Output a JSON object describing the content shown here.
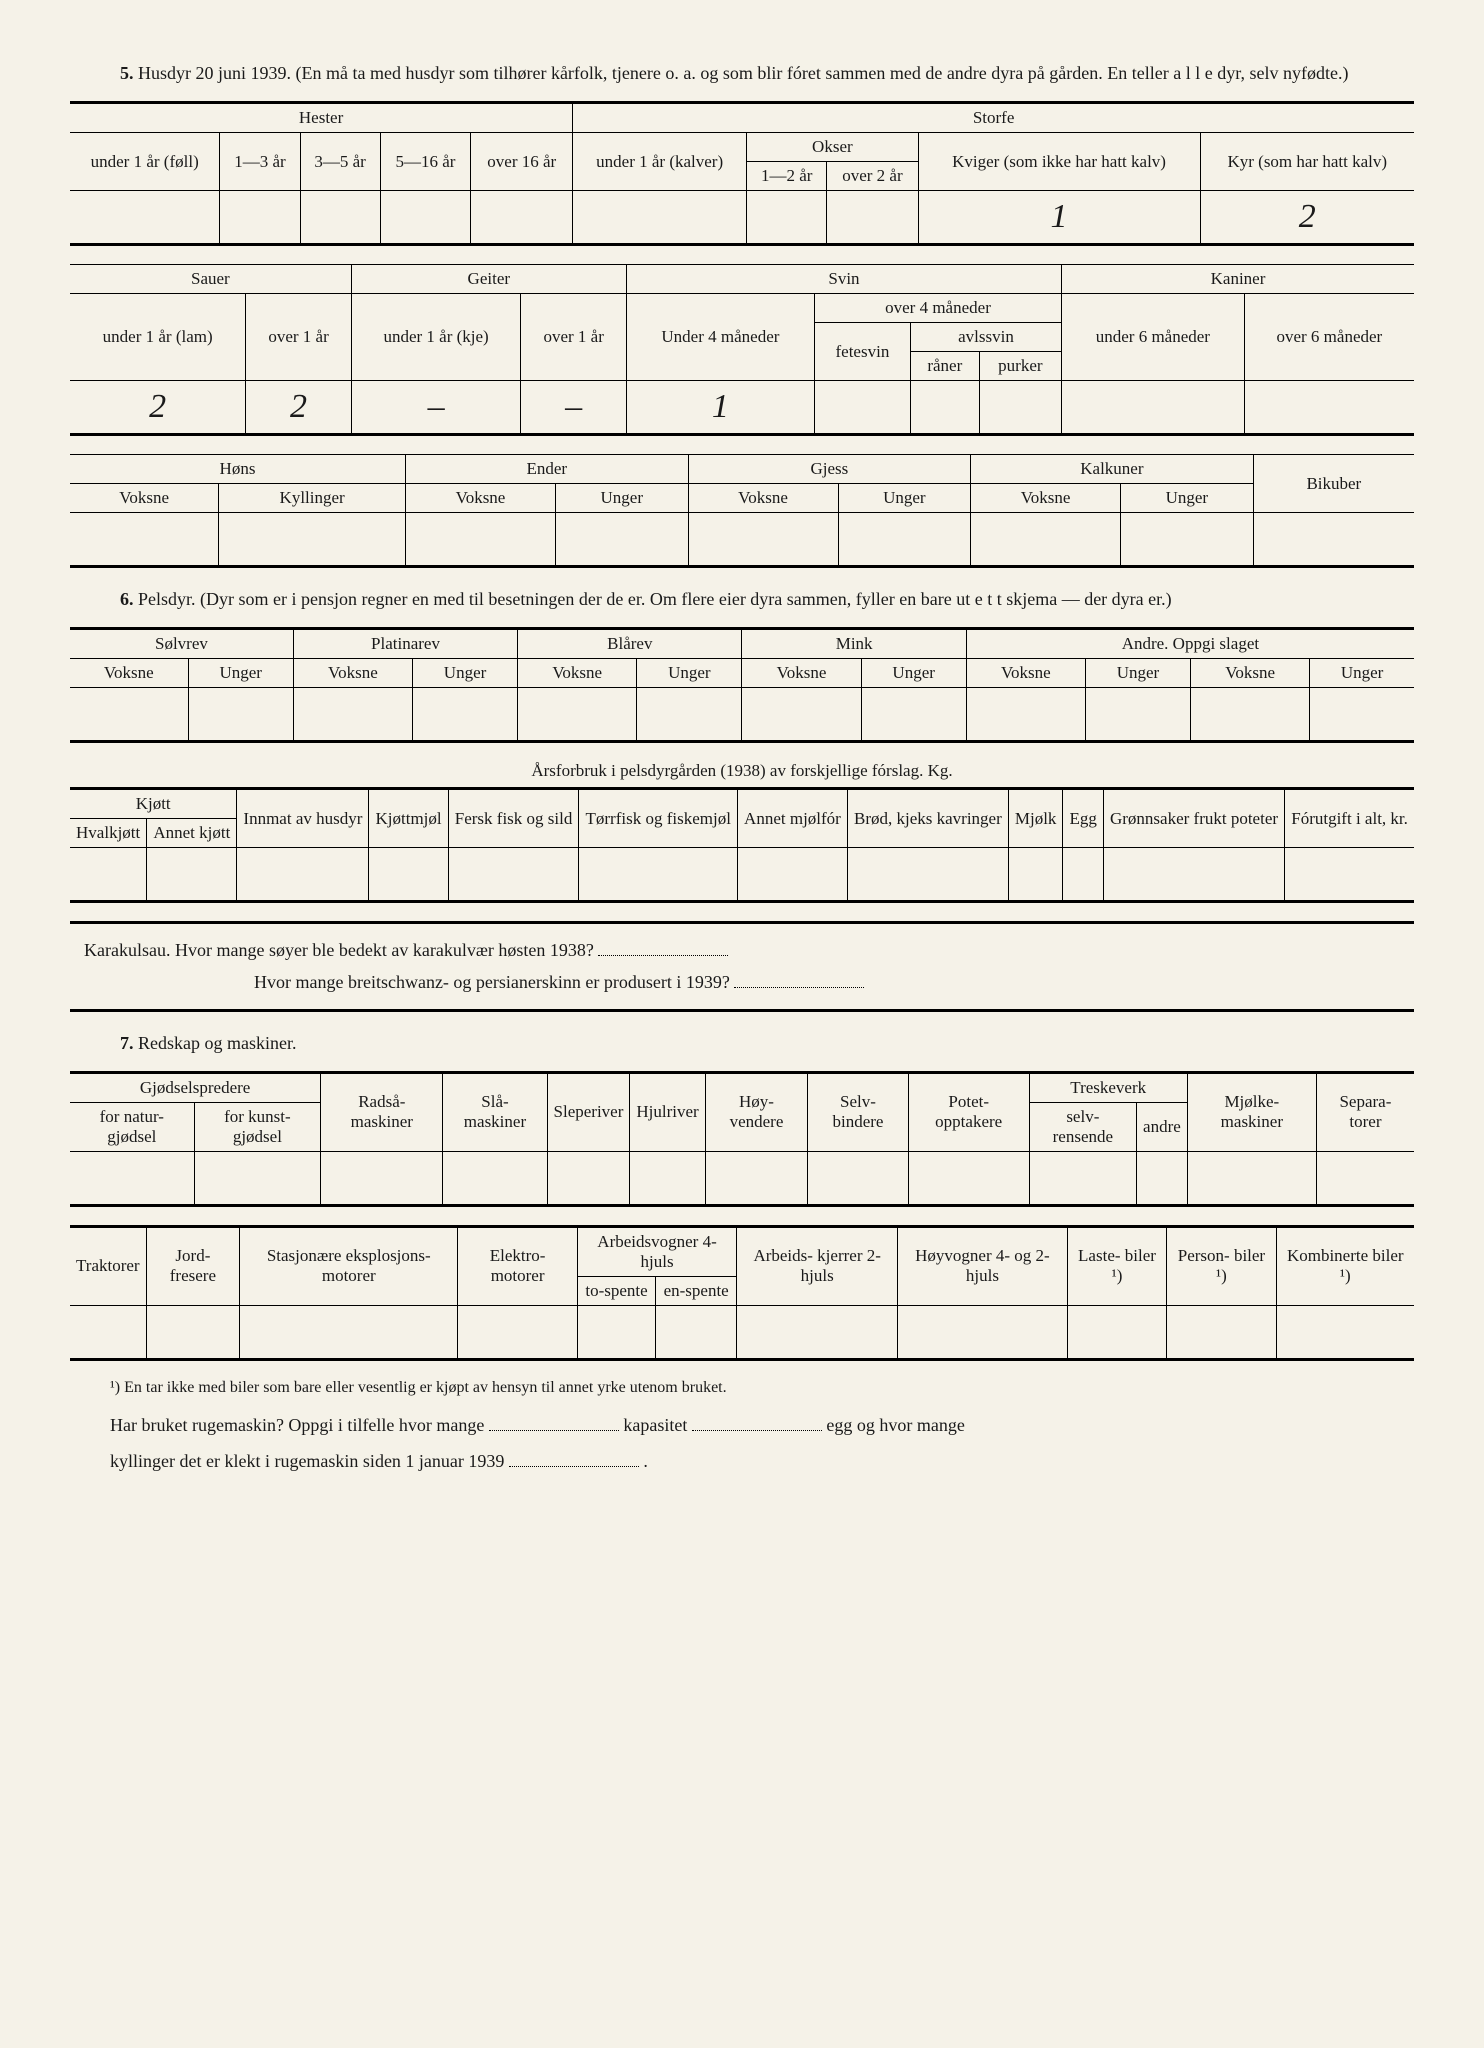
{
  "section5": {
    "num": "5.",
    "text": "Husdyr 20 juni 1939. (En må ta med husdyr som tilhører kårfolk, tjenere o. a. og som blir fóret sammen med de andre dyra på gården. En teller a l l e dyr, selv nyfødte.)"
  },
  "t1": {
    "hester": "Hester",
    "storfe": "Storfe",
    "under1foll": "under 1 år (føll)",
    "a1_3": "1—3 år",
    "a3_5": "3—5 år",
    "a5_16": "5—16 år",
    "over16": "over 16 år",
    "under1kalv": "under 1 år (kalver)",
    "okser": "Okser",
    "a1_2": "1—2 år",
    "over2": "over 2 år",
    "kviger": "Kviger (som ikke har hatt kalv)",
    "kyr": "Kyr (som har hatt kalv)",
    "data": {
      "kviger": "1",
      "kyr": "2"
    }
  },
  "t2": {
    "sauer": "Sauer",
    "geiter": "Geiter",
    "svin": "Svin",
    "kaniner": "Kaniner",
    "under1lam": "under 1 år (lam)",
    "over1": "over 1 år",
    "under1kje": "under 1 år (kje)",
    "over1g": "over 1 år",
    "under4m": "Under 4 måneder",
    "over4m": "over 4 måneder",
    "fetesvin": "fetesvin",
    "avlssvin": "avlssvin",
    "raner": "råner",
    "purker": "purker",
    "under6m": "under 6 måneder",
    "over6m": "over 6 måneder",
    "data": {
      "lam": "2",
      "sau_over1": "2",
      "kje": "–",
      "geit_over1": "–",
      "svin_u4": "1"
    }
  },
  "t3": {
    "hons": "Høns",
    "ender": "Ender",
    "gjess": "Gjess",
    "kalkuner": "Kalkuner",
    "bikuber": "Bikuber",
    "voksne": "Voksne",
    "kyllinger": "Kyllinger",
    "unger": "Unger"
  },
  "section6": {
    "num": "6.",
    "text": "Pelsdyr. (Dyr som er i pensjon regner en med til besetningen der de er. Om flere eier dyra sammen, fyller en bare ut e t t skjema — der dyra er.)"
  },
  "t4": {
    "solvrev": "Sølvrev",
    "platinarev": "Platinarev",
    "blarev": "Blårev",
    "mink": "Mink",
    "andre": "Andre. Oppgi slaget",
    "voksne": "Voksne",
    "unger": "Unger"
  },
  "feedcaption": "Årsforbruk i pelsdyrgården (1938) av forskjellige fórslag. Kg.",
  "t5": {
    "kjott": "Kjøtt",
    "hvalkjott": "Hvalkjøtt",
    "annetkjott": "Annet kjøtt",
    "innmat": "Innmat av husdyr",
    "kjottmjol": "Kjøttmjøl",
    "ferskfisk": "Fersk fisk og sild",
    "torrfisk": "Tørrfisk og fiskemjøl",
    "annetmjol": "Annet mjølfór",
    "brod": "Brød, kjeks kavringer",
    "mjolk": "Mjølk",
    "egg": "Egg",
    "gronnsaker": "Grønnsaker frukt poteter",
    "forutgift": "Fórutgift i alt, kr."
  },
  "karakul": {
    "q1pre": "Karakulsau.   Hvor mange søyer ble bedekt av karakulvær høsten 1938?",
    "q2": "Hvor mange breitschwanz- og persianerskinn er produsert i 1939?"
  },
  "section7": {
    "num": "7.",
    "text": "Redskap og maskiner."
  },
  "t6": {
    "gjodsel": "Gjødselspredere",
    "fornatur": "for natur- gjødsel",
    "forkunst": "for kunst- gjødsel",
    "radsa": "Radså- maskiner",
    "sla": "Slå- maskiner",
    "sleperiver": "Sleperiver",
    "hjulriver": "Hjulriver",
    "hoyvendere": "Høy- vendere",
    "selvbindere": "Selv- bindere",
    "potet": "Potet- opptakere",
    "treskeverk": "Treskeverk",
    "selvrens": "selv- rensende",
    "andre": "andre",
    "mjolke": "Mjølke- maskiner",
    "separa": "Separa- torer"
  },
  "t7": {
    "traktorer": "Traktorer",
    "jordfresere": "Jord- fresere",
    "stasjon": "Stasjonære eksplosjons- motorer",
    "elektro": "Elektro- motorer",
    "arbeidsvogner": "Arbeidsvogner 4-hjuls",
    "tospente": "to-spente",
    "enspente": "en-spente",
    "arbeidskj": "Arbeids- kjerrer 2-hjuls",
    "hoyvogner": "Høyvogner 4- og 2-hjuls",
    "lastebiler": "Laste- biler ¹)",
    "personbiler": "Person- biler ¹)",
    "kombinerte": "Kombinerte biler ¹)"
  },
  "footnote": "¹) En tar ikke med biler som bare eller vesentlig er kjøpt av hensyn til annet yrke utenom bruket.",
  "final": {
    "l1a": "Har bruket rugemaskin? Oppgi i tilfelle hvor mange",
    "l1b": "kapasitet",
    "l1c": "egg og hvor mange",
    "l2a": "kyllinger det er klekt i rugemaskin siden 1 januar 1939",
    "l2b": "."
  }
}
